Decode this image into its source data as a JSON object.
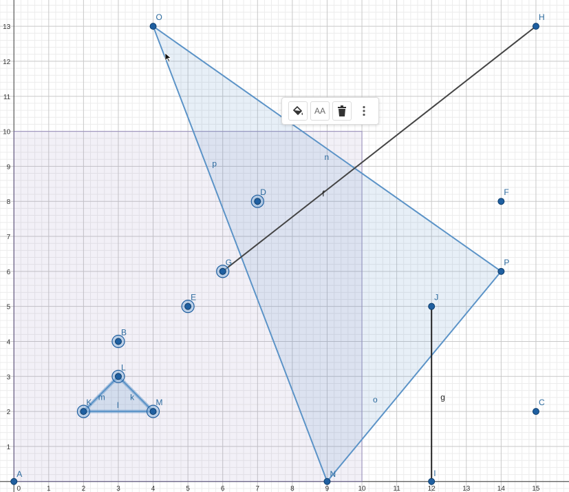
{
  "graph": {
    "x_ticks": [
      "0",
      "1",
      "2",
      "3",
      "4",
      "5",
      "6",
      "7",
      "8",
      "9",
      "10",
      "11",
      "12",
      "13",
      "14",
      "15"
    ],
    "y_ticks": [
      "1",
      "2",
      "3",
      "4",
      "5",
      "6",
      "7",
      "8",
      "9",
      "10",
      "11",
      "12",
      "13"
    ],
    "x_range": [
      -0.4,
      15.95
    ],
    "y_range": [
      -0.3,
      13.75
    ],
    "origin_label": "0",
    "points": [
      {
        "name": "A",
        "x": 0,
        "y": 0,
        "selected": false
      },
      {
        "name": "B",
        "x": 3,
        "y": 4,
        "selected": true
      },
      {
        "name": "C",
        "x": 15,
        "y": 2,
        "selected": false
      },
      {
        "name": "D",
        "x": 7,
        "y": 8,
        "selected": true
      },
      {
        "name": "E",
        "x": 5,
        "y": 5,
        "selected": true
      },
      {
        "name": "F",
        "x": 14,
        "y": 8,
        "selected": false
      },
      {
        "name": "G",
        "x": 6,
        "y": 6,
        "selected": true
      },
      {
        "name": "H",
        "x": 15,
        "y": 13,
        "selected": false
      },
      {
        "name": "I",
        "x": 12,
        "y": 0,
        "selected": false
      },
      {
        "name": "J",
        "x": 12,
        "y": 5,
        "selected": false
      },
      {
        "name": "K",
        "x": 2,
        "y": 2,
        "selected": true
      },
      {
        "name": "L",
        "x": 3,
        "y": 3,
        "selected": true
      },
      {
        "name": "M",
        "x": 4,
        "y": 2,
        "selected": true
      },
      {
        "name": "N",
        "x": 9,
        "y": 0,
        "selected": false
      },
      {
        "name": "O",
        "x": 4,
        "y": 13,
        "selected": false
      },
      {
        "name": "P",
        "x": 14,
        "y": 6,
        "selected": false
      }
    ],
    "rectangle": {
      "x1": 0,
      "y1": 0,
      "x2": 10,
      "y2": 10,
      "color": "#7d6fb3"
    },
    "triangle_big": {
      "vertices": [
        "O",
        "P",
        "N"
      ],
      "labels": {
        "OP": "n",
        "PN": "o",
        "NO": "p"
      },
      "color": "#5b93c7"
    },
    "triangle_small": {
      "vertices": [
        "K",
        "L",
        "M"
      ],
      "labels": {
        "KL": "m",
        "LM": "k",
        "MK": "l"
      },
      "color": "#5b93c7"
    },
    "segments": [
      {
        "label": "f",
        "from": "G",
        "to": "H",
        "color": "#444444"
      },
      {
        "label": "g",
        "from": "I",
        "to": "J",
        "color": "#222222"
      }
    ]
  },
  "toolbar": {
    "fill_icon": "paint-bucket-icon",
    "text_style_label": "AA",
    "delete_icon": "trash-icon",
    "more_icon": "more-vertical-icon"
  },
  "colors": {
    "point": "#1f5fa0",
    "point_label": "#2b6a9e",
    "grid_major": "#c8c8c8",
    "grid_minor": "#ececec"
  }
}
